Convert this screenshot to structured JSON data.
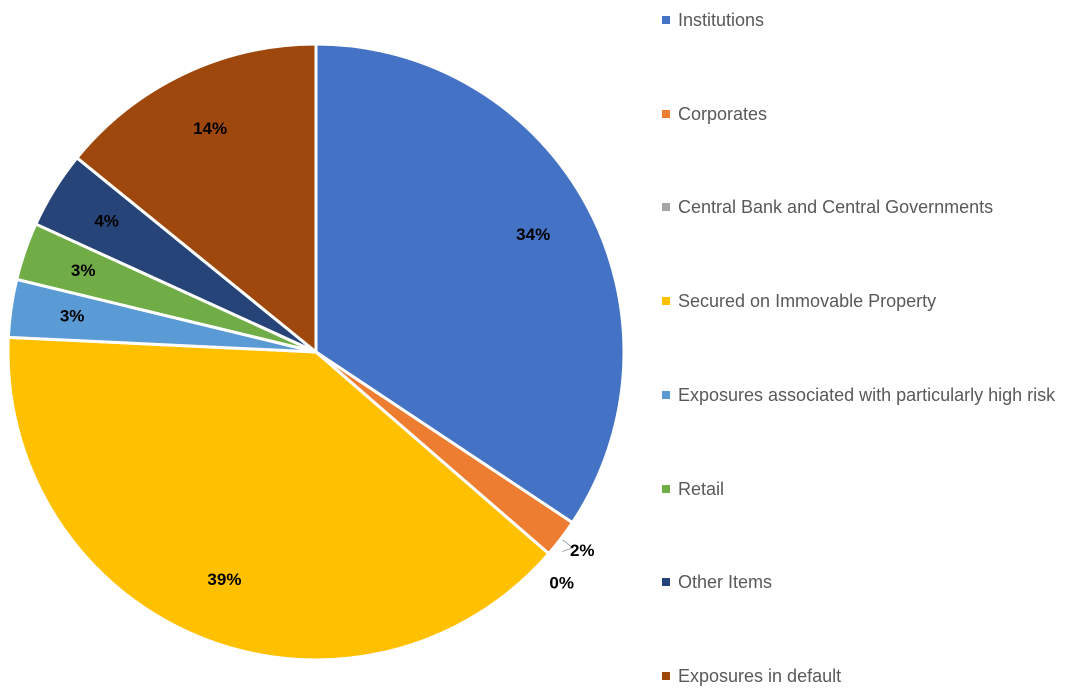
{
  "chart_data": {
    "type": "pie",
    "categories": [
      "Institutions",
      "Corporates",
      "Central Bank and Central Governments",
      "Secured on Immovable Property",
      "Exposures associated with particularly high risk",
      "Retail",
      "Other Items",
      "Exposures in default"
    ],
    "values": [
      34,
      2,
      0,
      39,
      3,
      3,
      4,
      14
    ],
    "value_labels": [
      "34%",
      "2%",
      "0%",
      "39%",
      "3%",
      "3%",
      "4%",
      "14%"
    ],
    "colors": [
      "#4472c4",
      "#ed7d31",
      "#a5a5a5",
      "#ffc000",
      "#5b9bd5",
      "#70ad47",
      "#264478",
      "#9e480e"
    ],
    "legend": "right"
  }
}
